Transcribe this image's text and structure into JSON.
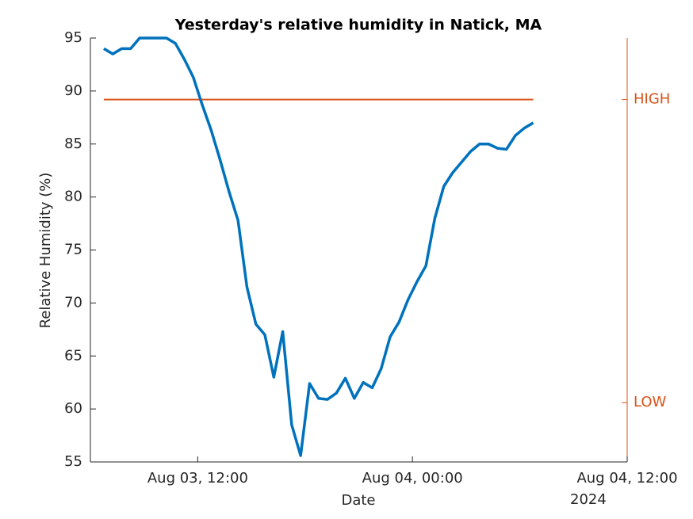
{
  "chart_data": {
    "type": "line",
    "title": "Yesterday's relative humidity in Natick, MA",
    "xlabel": "Date",
    "ylabel": "Relative Humidity (%)",
    "x_secondary_label": "2024",
    "x": [
      "2024-08-03T06:45",
      "2024-08-03T07:15",
      "2024-08-03T07:45",
      "2024-08-03T08:15",
      "2024-08-03T08:45",
      "2024-08-03T09:15",
      "2024-08-03T09:45",
      "2024-08-03T10:15",
      "2024-08-03T10:45",
      "2024-08-03T11:15",
      "2024-08-03T11:45",
      "2024-08-03T12:15",
      "2024-08-03T12:45",
      "2024-08-03T13:15",
      "2024-08-03T13:45",
      "2024-08-03T14:15",
      "2024-08-03T14:45",
      "2024-08-03T15:15",
      "2024-08-03T15:45",
      "2024-08-03T16:15",
      "2024-08-03T16:45",
      "2024-08-03T17:15",
      "2024-08-03T17:45",
      "2024-08-03T18:15",
      "2024-08-03T18:45",
      "2024-08-03T19:15",
      "2024-08-03T19:45",
      "2024-08-03T20:15",
      "2024-08-03T20:45",
      "2024-08-03T21:15",
      "2024-08-03T21:45",
      "2024-08-03T22:15",
      "2024-08-03T22:45",
      "2024-08-03T23:15",
      "2024-08-03T23:45",
      "2024-08-04T00:15",
      "2024-08-04T00:45",
      "2024-08-04T01:15",
      "2024-08-04T01:45",
      "2024-08-04T02:15",
      "2024-08-04T02:45",
      "2024-08-04T03:15",
      "2024-08-04T03:45",
      "2024-08-04T04:15",
      "2024-08-04T04:45",
      "2024-08-04T05:15",
      "2024-08-04T05:45",
      "2024-08-04T06:15",
      "2024-08-04T06:45"
    ],
    "series": [
      {
        "color": "#0072bd",
        "values": [
          94.0,
          93.5,
          94.0,
          94.0,
          95.0,
          95.0,
          95.0,
          95.0,
          94.5,
          93.0,
          91.3,
          88.7,
          86.3,
          83.5,
          80.5,
          77.8,
          71.5,
          68.0,
          67.0,
          63.0,
          67.3,
          58.5,
          55.6,
          62.4,
          61.0,
          60.9,
          61.5,
          62.9,
          61.0,
          62.5,
          62.0,
          63.8,
          66.8,
          68.2,
          70.3,
          72.0,
          73.5,
          78.0,
          81.0,
          82.3,
          83.3,
          84.3,
          85.0,
          85.0,
          84.6,
          84.5,
          85.8,
          86.5,
          87.0
        ]
      }
    ],
    "hlines": [
      {
        "y": 89.2,
        "xmin": "2024-08-03T06:45",
        "xmax": "2024-08-04T06:45",
        "color": "#d95319",
        "axis": "y2"
      }
    ],
    "xlim": [
      "2024-08-03T06:00",
      "2024-08-04T12:00"
    ],
    "xticks": [
      {
        "value": "2024-08-03T12:00",
        "label": "Aug 03, 12:00"
      },
      {
        "value": "2024-08-04T00:00",
        "label": "Aug 04, 00:00"
      },
      {
        "value": "2024-08-04T12:00",
        "label": "Aug 04, 12:00"
      }
    ],
    "ylim": [
      55,
      95
    ],
    "yticks": [
      55,
      60,
      65,
      70,
      75,
      80,
      85,
      90,
      95
    ],
    "y2lim": [
      55,
      95
    ],
    "y2ticks": [
      {
        "value": 89.2,
        "label": "HIGH"
      },
      {
        "value": 60.6,
        "label": "LOW"
      }
    ],
    "y2color": "#d95319",
    "grid": false
  }
}
